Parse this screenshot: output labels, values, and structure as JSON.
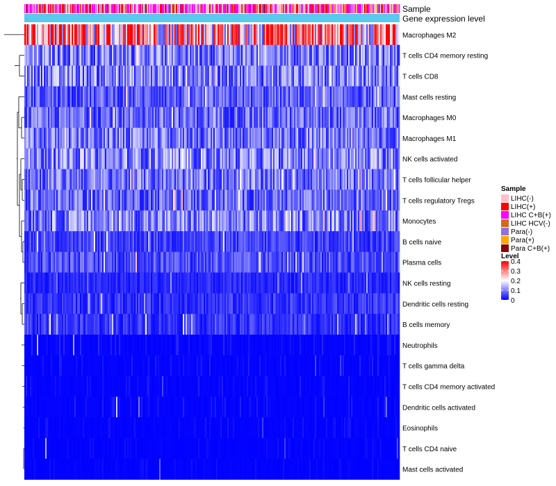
{
  "chart_data": {
    "type": "heatmap",
    "title": "",
    "annotation_rows": [
      "Sample",
      "Gene expression level"
    ],
    "rows": [
      "Macrophages M2",
      "T cells CD4 memory resting",
      "T cells CD8",
      "Mast cells resting",
      "Macrophages M0",
      "Macrophages M1",
      "NK cells activated",
      "T cells follicular helper",
      "T cells regulatory  Tregs",
      "Monocytes",
      "B cells naive",
      "Plasma cells",
      "NK cells resting",
      "Dendritic cells resting",
      "B cells memory",
      "Neutrophils",
      "T cells gamma delta",
      "T cells CD4 memory activated",
      "Dendritic cells activated",
      "Eosinophils",
      "T cells CD4 naive",
      "Mast cells activated"
    ],
    "row_mean_level": [
      0.28,
      0.1,
      0.1,
      0.07,
      0.08,
      0.09,
      0.1,
      0.09,
      0.08,
      0.1,
      0.05,
      0.06,
      0.03,
      0.04,
      0.04,
      0.02,
      0.015,
      0.015,
      0.015,
      0.01,
      0.008,
      0.008
    ],
    "n_samples": 540,
    "legend_sample": {
      "title": "Sample",
      "items": [
        {
          "label": "LIHC(-)",
          "color": "#ffc0cb"
        },
        {
          "label": "LIHC(+)",
          "color": "#ff0000"
        },
        {
          "label": "LIHC C+B(+)",
          "color": "#ff00ff"
        },
        {
          "label": "LIHC HCV(-)",
          "color": "#d2691e"
        },
        {
          "label": "Para(-)",
          "color": "#9370db"
        },
        {
          "label": "Para(+)",
          "color": "#ffa500"
        },
        {
          "label": "Para C+B(+)",
          "color": "#8b0000"
        }
      ]
    },
    "legend_level": {
      "title": "Level",
      "ticks": [
        "0.4",
        "0.3",
        "0.2",
        "0.1",
        "0"
      ],
      "tick_values": [
        0.4,
        0.3,
        0.2,
        0.1,
        0
      ],
      "colors": [
        "#ff0000",
        "#ffffff",
        "#0000ff"
      ]
    },
    "gene_expression_color": "#5bc8ee"
  }
}
